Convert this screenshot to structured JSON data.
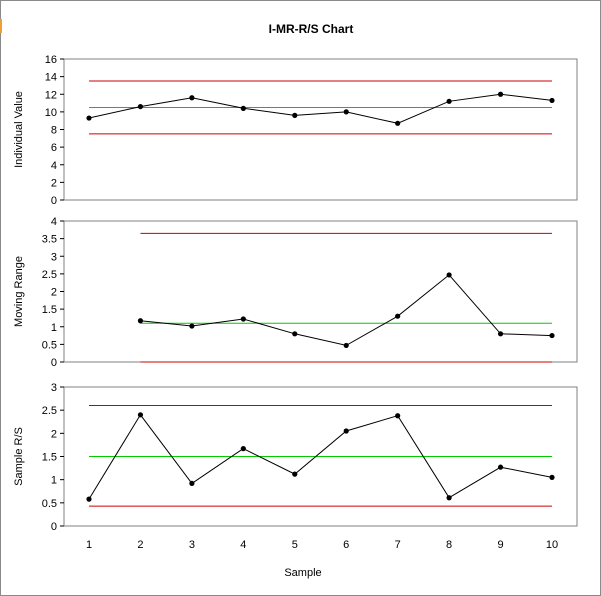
{
  "chart_data": {
    "type": "line",
    "title": "I-MR-R/S Chart",
    "xlabel": "Sample",
    "x": [
      1,
      2,
      3,
      4,
      5,
      6,
      7,
      8,
      9,
      10
    ],
    "colors": {
      "data": "#000000",
      "center_line": "#00cc00",
      "control_limit": "#cc0000"
    },
    "grid": false,
    "panels": [
      {
        "ylabel": "Individual Value",
        "ylim": [
          0,
          16
        ],
        "yticks": [
          "0",
          "2",
          "4",
          "6",
          "8",
          "10",
          "12",
          "14",
          "16"
        ],
        "values": [
          9.3,
          10.6,
          11.6,
          10.4,
          9.6,
          10.0,
          8.7,
          11.2,
          12.0,
          11.3
        ],
        "center": 10.5,
        "ucl": 13.5,
        "lcl": 7.5,
        "limit_x_range": [
          1,
          10
        ]
      },
      {
        "ylabel": "Moving Range",
        "ylim": [
          0,
          4
        ],
        "yticks": [
          "0",
          "0.5",
          "1",
          "1.5",
          "2",
          "2.5",
          "3",
          "3.5",
          "4"
        ],
        "values": [
          null,
          1.17,
          1.02,
          1.22,
          0.8,
          0.47,
          1.3,
          2.47,
          0.8,
          0.75
        ],
        "center": 1.1,
        "ucl": 3.65,
        "lcl": 0.0,
        "limit_x_range": [
          2,
          10
        ]
      },
      {
        "ylabel": "Sample R/S",
        "ylim": [
          0,
          3
        ],
        "yticks": [
          "0",
          "0.5",
          "1",
          "1.5",
          "2",
          "2.5",
          "3"
        ],
        "values": [
          0.58,
          2.4,
          0.92,
          1.67,
          1.12,
          2.05,
          2.38,
          0.61,
          1.27,
          1.05
        ],
        "center": 1.5,
        "ucl": 2.6,
        "lcl": 0.43,
        "limit_x_range": [
          1,
          10
        ]
      }
    ]
  }
}
